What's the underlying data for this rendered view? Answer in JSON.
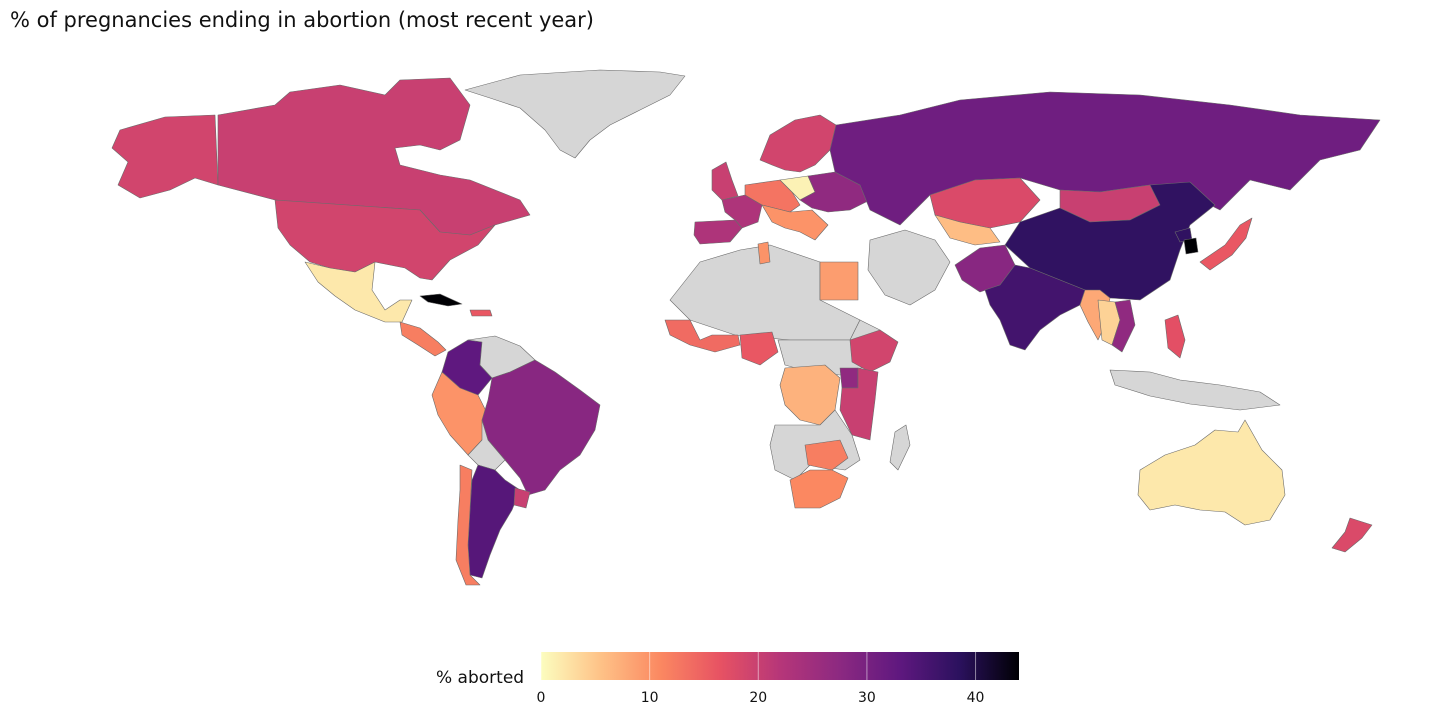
{
  "title": "% of pregnancies ending in abortion (most recent year)",
  "legend": {
    "label": "% aborted",
    "min": 0,
    "max": 44,
    "ticks": [
      "0",
      "10",
      "20",
      "30",
      "40"
    ],
    "tick_values": [
      0,
      10,
      20,
      30,
      40
    ],
    "colors": [
      "#fcfdbf",
      "#fec287",
      "#fb8861",
      "#e75263",
      "#b63679",
      "#8c2981",
      "#5f187f",
      "#2b115e",
      "#000004"
    ]
  },
  "no_data_color": "#d6d6d6",
  "chart_data": {
    "type": "choropleth",
    "title": "% of pregnancies ending in abortion (most recent year)",
    "colorbar_label": "% aborted",
    "colorbar_range": [
      0,
      44
    ],
    "regions": [
      {
        "name": "Canada",
        "value": 20
      },
      {
        "name": "Alaska (United States)",
        "value": 19
      },
      {
        "name": "United States",
        "value": 19
      },
      {
        "name": "Greenland",
        "value": null
      },
      {
        "name": "Iceland",
        "value": 2
      },
      {
        "name": "Mexico",
        "value": 1
      },
      {
        "name": "Cuba",
        "value": 44
      },
      {
        "name": "Caribbean",
        "value": 16
      },
      {
        "name": "Central America",
        "value": 12
      },
      {
        "name": "Colombia",
        "value": 33
      },
      {
        "name": "Venezuela",
        "value": null
      },
      {
        "name": "Peru",
        "value": 10
      },
      {
        "name": "Bolivia",
        "value": null
      },
      {
        "name": "Brazil",
        "value": 28
      },
      {
        "name": "Argentina",
        "value": 34
      },
      {
        "name": "Uruguay",
        "value": 20
      },
      {
        "name": "Chile",
        "value": 12
      },
      {
        "name": "United Kingdom",
        "value": 20
      },
      {
        "name": "Spain / Portugal",
        "value": 23
      },
      {
        "name": "France",
        "value": 23
      },
      {
        "name": "Germany / Central Europe",
        "value": 13
      },
      {
        "name": "Italy / Balkans",
        "value": 10
      },
      {
        "name": "Poland",
        "value": 1
      },
      {
        "name": "Scandinavia",
        "value": 19
      },
      {
        "name": "Ukraine / Belarus",
        "value": 27
      },
      {
        "name": "Russia",
        "value": 31
      },
      {
        "name": "Kazakhstan",
        "value": 18
      },
      {
        "name": "Uzbekistan / Central Asia",
        "value": 6
      },
      {
        "name": "Mongolia",
        "value": 20
      },
      {
        "name": "China",
        "value": 38
      },
      {
        "name": "North Korea",
        "value": 38
      },
      {
        "name": "South Korea",
        "value": 44
      },
      {
        "name": "Japan",
        "value": 16
      },
      {
        "name": "India",
        "value": 36
      },
      {
        "name": "Pakistan / Afghanistan",
        "value": 28
      },
      {
        "name": "Myanmar",
        "value": 8
      },
      {
        "name": "Thailand / Laos",
        "value": 4
      },
      {
        "name": "Vietnam / Cambodia",
        "value": 27
      },
      {
        "name": "Philippines",
        "value": 17
      },
      {
        "name": "Egypt",
        "value": 9
      },
      {
        "name": "Tunisia",
        "value": 10
      },
      {
        "name": "Nigeria",
        "value": 16
      },
      {
        "name": "Ghana / West Africa",
        "value": 14
      },
      {
        "name": "Ethiopia",
        "value": 19
      },
      {
        "name": "Kenya / Tanzania",
        "value": 20
      },
      {
        "name": "Uganda / Rwanda",
        "value": 27
      },
      {
        "name": "DR Congo",
        "value": 7
      },
      {
        "name": "Zimbabwe / Zambia",
        "value": 12
      },
      {
        "name": "South Africa",
        "value": 11
      },
      {
        "name": "Australia",
        "value": 2
      },
      {
        "name": "New Zealand",
        "value": 18
      }
    ]
  }
}
